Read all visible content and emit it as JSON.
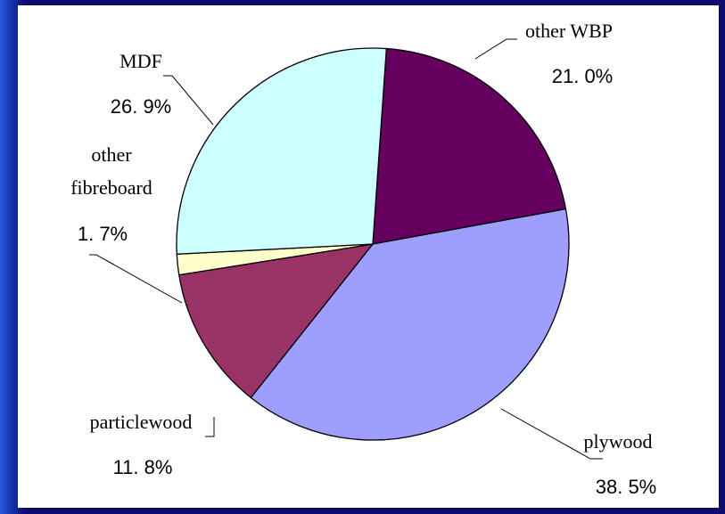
{
  "chart_data": {
    "type": "pie",
    "title": "",
    "series": [
      {
        "values": [
          21.0,
          38.5,
          11.8,
          1.7,
          26.9
        ]
      }
    ],
    "slices": [
      {
        "name_lines": [
          "other WBP"
        ],
        "value": 21.0,
        "value_label": "21. 0%",
        "color": "#66005e"
      },
      {
        "name_lines": [
          "plywood"
        ],
        "value": 38.5,
        "value_label": "38. 5%",
        "color": "#9e9eff"
      },
      {
        "name_lines": [
          "particlewood"
        ],
        "value": 11.8,
        "value_label": "11. 8%",
        "color": "#993366"
      },
      {
        "name_lines": [
          "other",
          "fibreboard"
        ],
        "value": 1.7,
        "value_label": "1. 7%",
        "color": "#ffffcc"
      },
      {
        "name_lines": [
          "MDF"
        ],
        "value": 26.9,
        "value_label": "26. 9%",
        "color": "#ccffff"
      }
    ],
    "start_angle_deg": 4,
    "legend": "none"
  },
  "colors": {
    "background": "#0b0a6e",
    "panel": "#ffffff"
  }
}
